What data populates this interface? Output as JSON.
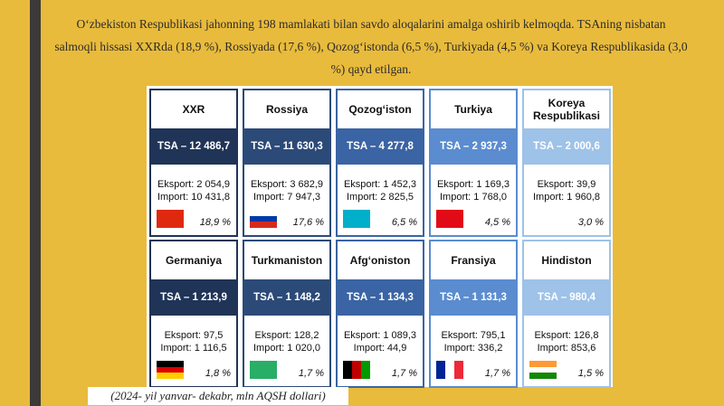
{
  "paragraph": "O‘zbekiston Respublikasi jahonning 198 mamlakati bilan savdo aloqalarini amalga oshirib kelmoqda. TSAning nisbatan salmoqli hissasi XXRda (18,9 %), Rossiyada (17,6 %), Qozog‘istonda (6,5 %), Turkiyada (4,5 %) va Koreya Respublikasida (3,0 %) qayd etilgan.",
  "cards": [
    {
      "name": "XXR",
      "tsa": "TSA – 12 486,7",
      "export": "Eksport: 2 054,9",
      "import": "Import: 10 431,8",
      "share": "18,9 %"
    },
    {
      "name": "Rossiya",
      "tsa": "TSA – 11 630,3",
      "export": "Eksport: 3 682,9",
      "import": "Import: 7 947,3",
      "share": "17,6 %"
    },
    {
      "name": "Qozog‘iston",
      "tsa": "TSA – 4 277,8",
      "export": "Eksport: 1 452,3",
      "import": "Import: 2 825,5",
      "share": "6,5 %"
    },
    {
      "name": "Turkiya",
      "tsa": "TSA – 2 937,3",
      "export": "Eksport: 1 169,3",
      "import": "Import: 1 768,0",
      "share": "4,5 %"
    },
    {
      "name": "Koreya Respublikasi",
      "tsa": "TSA – 2 000,6",
      "export": "Eksport: 39,9",
      "import": "Import: 1 960,8",
      "share": "3,0 %"
    },
    {
      "name": "Germaniya",
      "tsa": "TSA – 1 213,9",
      "export": "Eksport: 97,5",
      "import": "Import: 1 116,5",
      "share": "1,8 %"
    },
    {
      "name": "Turkmaniston",
      "tsa": "TSA – 1 148,2",
      "export": "Eksport: 128,2",
      "import": "Import: 1 020,0",
      "share": "1,7 %"
    },
    {
      "name": "Afg‘oniston",
      "tsa": "TSA – 1 134,3",
      "export": "Eksport: 1 089,3",
      "import": "Import: 44,9",
      "share": "1,7 %"
    },
    {
      "name": "Fransiya",
      "tsa": "TSA – 1 131,3",
      "export": "Eksport: 795,1",
      "import": "Import: 336,2",
      "share": "1,7 %"
    },
    {
      "name": "Hindiston",
      "tsa": "TSA – 980,4",
      "export": "Eksport: 126,8",
      "import": "Import: 853,6",
      "share": "1,5 %"
    }
  ],
  "footnote": "(2024- yil yanvar- dekabr, mln AQSH dollari)"
}
